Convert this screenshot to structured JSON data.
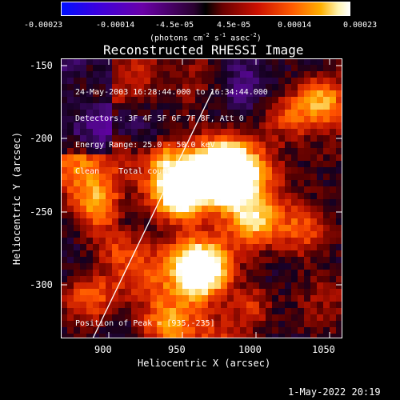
{
  "colorbar": {
    "ticks": [
      "-0.00023",
      "-0.00014",
      "-4.5e-05",
      "4.5e-05",
      "0.00014",
      "0.00023"
    ],
    "units_prefix": "(photons cm",
    "units_sup1": "-2",
    "units_mid1": " s",
    "units_sup2": "-1",
    "units_mid2": " asec",
    "units_sup3": "-2",
    "units_suffix": ")",
    "colors": [
      "#0000ff",
      "#6a00a8",
      "#000000",
      "#8a0000",
      "#ff3300",
      "#ffa000",
      "#fff8c0",
      "#ffffff"
    ]
  },
  "image": {
    "title": "Reconstructed RHESSI Image",
    "info_lines": [
      "24-May-2003 16:28:44.000 to 16:34:44.000",
      "Detectors: 3F 4F 5F 6F 7F 8F, Att 0",
      "Energy Range: 25.0 - 50.0 keV",
      "Clean    Total counts: 4.58E+03"
    ],
    "peak_text": "Position of Peak = [935,-235]"
  },
  "axes": {
    "xlabel": "Heliocentric X (arcsec)",
    "ylabel": "Heliocentric Y (arcsec)",
    "xticks": [
      "900",
      "950",
      "1000",
      "1050"
    ],
    "yticks": [
      "-150",
      "-200",
      "-250",
      "-300"
    ]
  },
  "footer": {
    "timestamp": "1-May-2022 20:19"
  }
}
